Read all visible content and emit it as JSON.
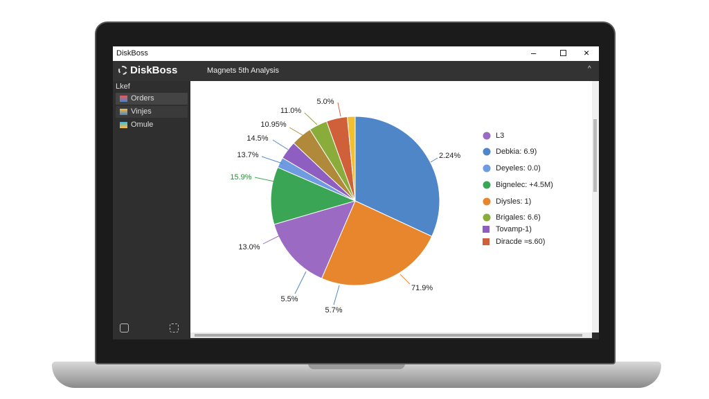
{
  "window": {
    "title": "DiskBoss"
  },
  "toolbar": {
    "app_name": "DiskBoss",
    "tab": "Magnets 5th Analysis"
  },
  "sidebar": {
    "header": "Lkef",
    "items": [
      "Orders",
      "Vinjes",
      "Omule"
    ]
  },
  "chart_data": {
    "type": "pie",
    "values": [
      31.9,
      24.6,
      14,
      11,
      2,
      3.5,
      4,
      3.5,
      4,
      1.5
    ],
    "colors": [
      "#4e86c8",
      "#e8862e",
      "#9b6bc4",
      "#3aa655",
      "#6f9be0",
      "#8e5fc0",
      "#b08a3a",
      "#8aac3a",
      "#d0603a",
      "#f0c030"
    ],
    "callouts": [
      "2.24%",
      "71.9%",
      "5.7%",
      "5.5%",
      "13.0%",
      "15.9%",
      "13.7%",
      "14.5%",
      "10.95%",
      "11.0%",
      "5.0%"
    ],
    "legend": [
      {
        "name": "L3",
        "color": "#9b6bc4",
        "marker": "circle"
      },
      {
        "name": "Debkia: 6.9)",
        "color": "#4e86c8",
        "marker": "circle"
      },
      {
        "name": "Deyeles: 0.0)",
        "color": "#6f9be0",
        "marker": "circle"
      },
      {
        "name": "Bignelec: +4.5M)",
        "color": "#3aa655",
        "marker": "circle"
      },
      {
        "name": "Diysles: 1)",
        "color": "#e8862e",
        "marker": "circle"
      },
      {
        "name": "Brigales: 6.6)",
        "color": "#8aac3a",
        "marker": "circle"
      },
      {
        "name": "Tovamp-1)",
        "color": "#8e5fc0",
        "marker": "square"
      },
      {
        "name": "Diracde ≈s.60)",
        "color": "#d0603a",
        "marker": "square"
      }
    ]
  }
}
